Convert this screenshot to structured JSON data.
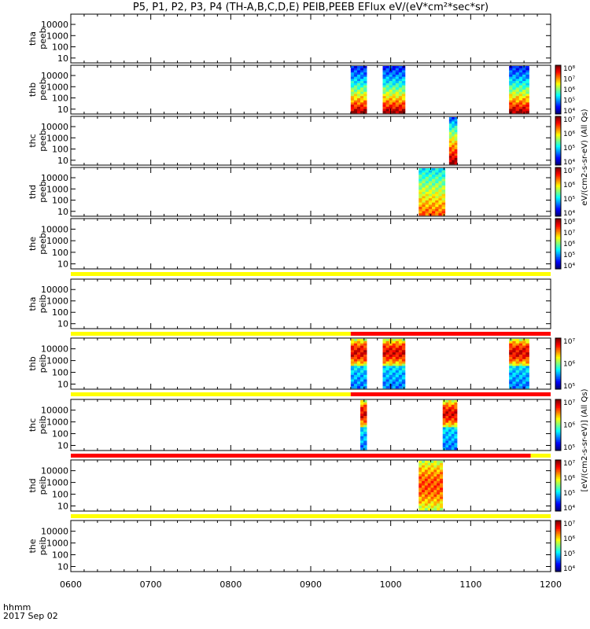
{
  "title": "P5, P1, P2, P3, P4 (TH-A,B,C,D,E) PEIB,PEEB EFlux eV/(eV*cm²*sec*sr)",
  "footer": {
    "line1": "hhmm",
    "line2": "2017 Sep 02"
  },
  "colorbar_label_ee": "eV/(cm2-s-sr-eV) (All Qs)",
  "colorbar_label_ie": "[eV/(cm2-s-sr-eV)] (All Qs)",
  "chart_data": {
    "type": "heatmap",
    "x_ticks": [
      "0600",
      "0700",
      "0800",
      "0900",
      "1000",
      "1100",
      "1200"
    ],
    "x_range_hours": [
      6.0,
      12.0
    ],
    "y_ticks": [
      "10",
      "100",
      "1000",
      "10000"
    ],
    "y_scale": "log",
    "panels": [
      {
        "label1": "tha",
        "label2": "peeb",
        "colorbar": false,
        "flagbar_after": null,
        "blocks": []
      },
      {
        "label1": "thb",
        "label2": "peeb",
        "colorbar": true,
        "cb_ticks": [
          "10⁴",
          "10⁵",
          "10⁶",
          "10⁷",
          "10⁸"
        ],
        "flagbar_after": null,
        "blocks": [
          {
            "start": 9.5,
            "end": 9.7,
            "profile": "ee"
          },
          {
            "start": 9.9,
            "end": 10.18,
            "profile": "ee"
          },
          {
            "start": 11.48,
            "end": 11.73,
            "profile": "ee"
          }
        ]
      },
      {
        "label1": "thc",
        "label2": "peeb",
        "colorbar": true,
        "cb_ticks": [
          "10⁴",
          "10⁵",
          "10⁶",
          "10⁷"
        ],
        "flagbar_after": null,
        "blocks": [
          {
            "start": 10.73,
            "end": 10.83,
            "profile": "ee_high"
          }
        ]
      },
      {
        "label1": "thd",
        "label2": "peeb",
        "colorbar": true,
        "cb_ticks": [
          "10⁴",
          "10⁵",
          "10⁶",
          "10⁷"
        ],
        "flagbar_after": null,
        "blocks": [
          {
            "start": 10.35,
            "end": 10.68,
            "profile": "ee_mixed"
          }
        ]
      },
      {
        "label1": "the",
        "label2": "peeb",
        "colorbar": true,
        "cb_ticks": [
          "10⁴",
          "10⁵",
          "10⁶",
          "10⁷",
          "10⁸"
        ],
        "flagbar_after": "yellow",
        "blocks": []
      },
      {
        "label1": "tha",
        "label2": "peib",
        "colorbar": false,
        "flagbar_after": "yellow_red",
        "flag_split": 9.5,
        "blocks": []
      },
      {
        "label1": "thb",
        "label2": "peib",
        "colorbar": true,
        "cb_ticks": [
          "10⁵",
          "10⁶",
          "10⁷"
        ],
        "flagbar_after": "yellow_red",
        "flag_split": 9.5,
        "blocks": [
          {
            "start": 9.5,
            "end": 9.7,
            "profile": "ie"
          },
          {
            "start": 9.9,
            "end": 10.18,
            "profile": "ie"
          },
          {
            "start": 11.48,
            "end": 11.73,
            "profile": "ie"
          }
        ]
      },
      {
        "label1": "thc",
        "label2": "peib",
        "colorbar": true,
        "cb_ticks": [
          "10⁵",
          "10⁶",
          "10⁷"
        ],
        "flagbar_after": "red_yellow",
        "flag_split": 11.75,
        "blocks": [
          {
            "start": 9.62,
            "end": 9.7,
            "profile": "ie"
          },
          {
            "start": 10.65,
            "end": 10.83,
            "profile": "ie"
          }
        ]
      },
      {
        "label1": "thd",
        "label2": "peib",
        "colorbar": true,
        "cb_ticks": [
          "10⁴",
          "10⁵",
          "10⁶",
          "10⁷"
        ],
        "flagbar_after": "yellow",
        "blocks": [
          {
            "start": 10.35,
            "end": 10.65,
            "profile": "ie_mixed"
          }
        ]
      },
      {
        "label1": "the",
        "label2": "peib",
        "colorbar": true,
        "cb_ticks": [
          "10⁴",
          "10⁵",
          "10⁶",
          "10⁷"
        ],
        "flagbar_after": null,
        "blocks": []
      }
    ]
  }
}
